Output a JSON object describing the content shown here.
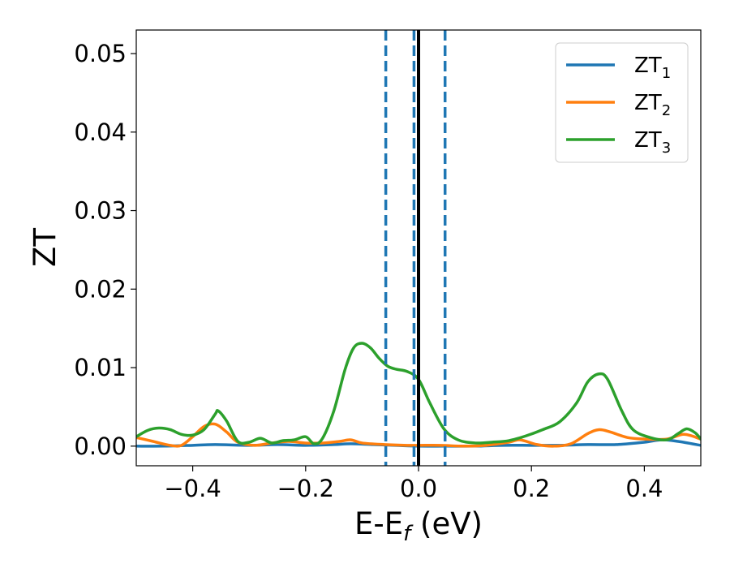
{
  "chart_data": {
    "type": "line",
    "xlabel": "E-E",
    "xlabel_sub": "f",
    "xlabel_unit": " (eV)",
    "ylabel": "ZT",
    "xlim": [
      -0.5,
      0.5
    ],
    "ylim": [
      -0.0025,
      0.053
    ],
    "xticks": [
      -0.4,
      -0.2,
      0.0,
      0.2,
      0.4
    ],
    "xtick_labels": [
      "−0.4",
      "−0.2",
      "0.0",
      "0.2",
      "0.4"
    ],
    "yticks": [
      0.0,
      0.01,
      0.02,
      0.03,
      0.04,
      0.05
    ],
    "ytick_labels": [
      "0.00",
      "0.01",
      "0.02",
      "0.03",
      "0.04",
      "0.05"
    ],
    "grid": false,
    "legend_position": "top-right",
    "solid_vline": {
      "x": 0.0,
      "color": "#000000"
    },
    "dashed_vlines": {
      "x": [
        -0.058,
        -0.008,
        0.047
      ],
      "color": "#1f77b4"
    },
    "series": [
      {
        "name": "ZT",
        "name_sub": "1",
        "color": "#1f77b4",
        "points": [
          [
            -0.5,
            0.0
          ],
          [
            -0.45,
            0.0
          ],
          [
            -0.4,
            0.0001
          ],
          [
            -0.36,
            0.0002
          ],
          [
            -0.3,
            0.0001
          ],
          [
            -0.25,
            0.0002
          ],
          [
            -0.2,
            0.0001
          ],
          [
            -0.15,
            0.0002
          ],
          [
            -0.12,
            0.0003
          ],
          [
            -0.08,
            0.0002
          ],
          [
            -0.04,
            0.0001
          ],
          [
            0.0,
            0.0
          ],
          [
            0.05,
            0.0
          ],
          [
            0.1,
            0.0
          ],
          [
            0.15,
            0.0001
          ],
          [
            0.2,
            0.0001
          ],
          [
            0.25,
            0.0001
          ],
          [
            0.3,
            0.0002
          ],
          [
            0.35,
            0.0002
          ],
          [
            0.4,
            0.0005
          ],
          [
            0.43,
            0.0008
          ],
          [
            0.46,
            0.0006
          ],
          [
            0.5,
            0.0001
          ]
        ]
      },
      {
        "name": "ZT",
        "name_sub": "2",
        "color": "#ff7f0e",
        "points": [
          [
            -0.5,
            0.0011
          ],
          [
            -0.47,
            0.0006
          ],
          [
            -0.44,
            0.0001
          ],
          [
            -0.42,
            0.0001
          ],
          [
            -0.4,
            0.0012
          ],
          [
            -0.38,
            0.0025
          ],
          [
            -0.36,
            0.0028
          ],
          [
            -0.34,
            0.0018
          ],
          [
            -0.32,
            0.0005
          ],
          [
            -0.29,
            0.0001
          ],
          [
            -0.26,
            0.0004
          ],
          [
            -0.23,
            0.0006
          ],
          [
            -0.2,
            0.0004
          ],
          [
            -0.17,
            0.0004
          ],
          [
            -0.14,
            0.0006
          ],
          [
            -0.12,
            0.0008
          ],
          [
            -0.1,
            0.0004
          ],
          [
            -0.06,
            0.0002
          ],
          [
            -0.02,
            0.0001
          ],
          [
            0.0,
            0.0001
          ],
          [
            0.04,
            0.0001
          ],
          [
            0.08,
            0.0
          ],
          [
            0.12,
            0.0001
          ],
          [
            0.16,
            0.0005
          ],
          [
            0.18,
            0.0008
          ],
          [
            0.21,
            0.0002
          ],
          [
            0.24,
            0.0
          ],
          [
            0.27,
            0.0003
          ],
          [
            0.3,
            0.0016
          ],
          [
            0.32,
            0.0021
          ],
          [
            0.34,
            0.0018
          ],
          [
            0.37,
            0.0011
          ],
          [
            0.4,
            0.0009
          ],
          [
            0.44,
            0.0009
          ],
          [
            0.47,
            0.0015
          ],
          [
            0.5,
            0.0009
          ]
        ]
      },
      {
        "name": "ZT",
        "name_sub": "3",
        "color": "#2ca02c",
        "points": [
          [
            -0.5,
            0.0012
          ],
          [
            -0.48,
            0.002
          ],
          [
            -0.46,
            0.0023
          ],
          [
            -0.44,
            0.0021
          ],
          [
            -0.42,
            0.0015
          ],
          [
            -0.4,
            0.0014
          ],
          [
            -0.38,
            0.0021
          ],
          [
            -0.36,
            0.0041
          ],
          [
            -0.355,
            0.0045
          ],
          [
            -0.34,
            0.0032
          ],
          [
            -0.32,
            0.0006
          ],
          [
            -0.3,
            0.0005
          ],
          [
            -0.28,
            0.001
          ],
          [
            -0.26,
            0.0004
          ],
          [
            -0.24,
            0.0007
          ],
          [
            -0.22,
            0.0008
          ],
          [
            -0.2,
            0.0012
          ],
          [
            -0.185,
            0.0003
          ],
          [
            -0.17,
            0.001
          ],
          [
            -0.15,
            0.0045
          ],
          [
            -0.13,
            0.0098
          ],
          [
            -0.115,
            0.0125
          ],
          [
            -0.1,
            0.0131
          ],
          [
            -0.085,
            0.0125
          ],
          [
            -0.07,
            0.0112
          ],
          [
            -0.055,
            0.0102
          ],
          [
            -0.04,
            0.0098
          ],
          [
            -0.02,
            0.0095
          ],
          [
            0.0,
            0.0085
          ],
          [
            0.02,
            0.0055
          ],
          [
            0.045,
            0.0022
          ],
          [
            0.07,
            0.0008
          ],
          [
            0.1,
            0.0004
          ],
          [
            0.13,
            0.0005
          ],
          [
            0.16,
            0.0007
          ],
          [
            0.19,
            0.0013
          ],
          [
            0.22,
            0.0021
          ],
          [
            0.25,
            0.0031
          ],
          [
            0.28,
            0.0055
          ],
          [
            0.3,
            0.0082
          ],
          [
            0.32,
            0.0092
          ],
          [
            0.335,
            0.0085
          ],
          [
            0.36,
            0.0045
          ],
          [
            0.38,
            0.0021
          ],
          [
            0.41,
            0.0011
          ],
          [
            0.44,
            0.0008
          ],
          [
            0.46,
            0.0016
          ],
          [
            0.475,
            0.0022
          ],
          [
            0.49,
            0.0017
          ],
          [
            0.5,
            0.0009
          ]
        ]
      }
    ]
  }
}
